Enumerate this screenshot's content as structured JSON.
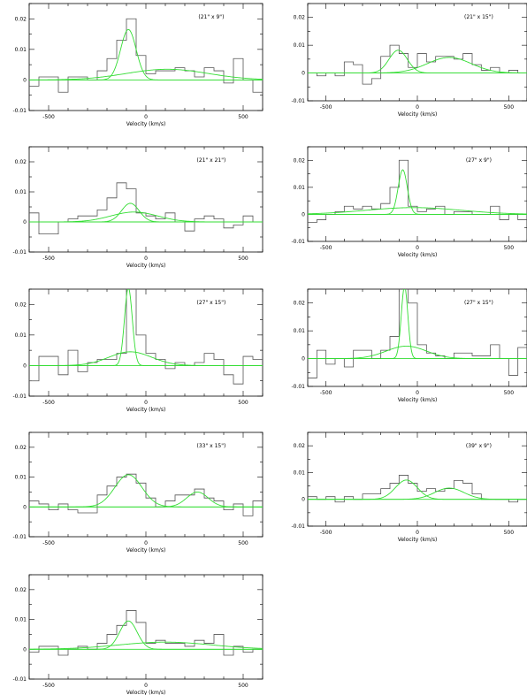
{
  "chart_data": [
    {
      "type": "line",
      "label": "(21\" x 9\")",
      "xlabel": "Velocity (km/s)",
      "xlim": [
        -600,
        600
      ],
      "ylim": [
        -0.01,
        0.025
      ],
      "xticks": [
        -500,
        0,
        500
      ],
      "yticks": [
        -0.01,
        0,
        0.01,
        0.02
      ],
      "ytick_labels": [
        "-0.01",
        "0",
        "0.01",
        "0.02"
      ],
      "spectrum": {
        "bin_edges": [
          -600,
          -550,
          -500,
          -450,
          -400,
          -350,
          -300,
          -250,
          -200,
          -150,
          -100,
          -50,
          0,
          50,
          100,
          150,
          200,
          250,
          300,
          350,
          400,
          450,
          500,
          550,
          600
        ],
        "values": [
          -0.002,
          0.001,
          0.001,
          -0.004,
          0.001,
          0.001,
          0.0,
          0.003,
          0.007,
          0.013,
          0.02,
          0.008,
          0.002,
          0.003,
          0.003,
          0.004,
          0.003,
          0.001,
          0.004,
          0.003,
          -0.001,
          0.007,
          0.0,
          -0.004
        ]
      },
      "components": [
        {
          "amplitude": 0.0165,
          "center": -90,
          "sigma": 40
        },
        {
          "amplitude": 0.0035,
          "center": 110,
          "sigma": 210
        }
      ]
    },
    {
      "type": "line",
      "label": "(21\" x 15\")",
      "xlabel": "Velocity (km/s)",
      "xlim": [
        -600,
        600
      ],
      "ylim": [
        -0.01,
        0.025
      ],
      "xticks": [
        -500,
        0,
        500
      ],
      "yticks": [
        -0.01,
        0,
        0.01,
        0.02
      ],
      "ytick_labels": [
        "-0.01",
        "0",
        "0.01",
        "0.02"
      ],
      "spectrum": {
        "bin_edges": [
          -600,
          -550,
          -500,
          -450,
          -400,
          -350,
          -300,
          -250,
          -200,
          -150,
          -100,
          -50,
          0,
          50,
          100,
          150,
          200,
          250,
          300,
          350,
          400,
          450,
          500,
          550,
          600
        ],
        "values": [
          0.0,
          -0.001,
          0.0,
          -0.001,
          0.004,
          0.003,
          -0.004,
          -0.002,
          0.006,
          0.01,
          0.007,
          0.002,
          0.007,
          0.004,
          0.006,
          0.006,
          0.005,
          0.007,
          0.003,
          0.001,
          0.002,
          0.0,
          0.001,
          0.0
        ]
      },
      "components": [
        {
          "amplitude": 0.0082,
          "center": -105,
          "sigma": 50
        },
        {
          "amplitude": 0.0056,
          "center": 175,
          "sigma": 120
        }
      ]
    },
    {
      "type": "line",
      "label": "(21\" x 21\")",
      "xlabel": "Velocity (km/s)",
      "xlim": [
        -600,
        600
      ],
      "ylim": [
        -0.01,
        0.025
      ],
      "xticks": [
        -500,
        0,
        500
      ],
      "yticks": [
        -0.01,
        0,
        0.01,
        0.02
      ],
      "ytick_labels": [
        "-0.01",
        "0",
        "0.01",
        "0.02"
      ],
      "spectrum": {
        "bin_edges": [
          -600,
          -550,
          -500,
          -450,
          -400,
          -350,
          -300,
          -250,
          -200,
          -150,
          -100,
          -50,
          0,
          50,
          100,
          150,
          200,
          250,
          300,
          350,
          400,
          450,
          500,
          550,
          600
        ],
        "values": [
          0.003,
          -0.004,
          -0.004,
          0.0,
          0.001,
          0.002,
          0.002,
          0.004,
          0.008,
          0.013,
          0.011,
          0.003,
          0.002,
          0.001,
          0.003,
          0.0,
          -0.003,
          0.001,
          0.002,
          0.001,
          -0.002,
          -0.001,
          0.002,
          0.0
        ]
      },
      "components": [
        {
          "amplitude": 0.0062,
          "center": -80,
          "sigma": 45
        },
        {
          "amplitude": 0.0033,
          "center": -60,
          "sigma": 120
        }
      ]
    },
    {
      "type": "line",
      "label": "(27\" x 9\")",
      "xlabel": "Velocity (km/s)",
      "xlim": [
        -600,
        600
      ],
      "ylim": [
        -0.01,
        0.025
      ],
      "xticks": [
        -500,
        0,
        500
      ],
      "yticks": [
        -0.01,
        0,
        0.01,
        0.02
      ],
      "ytick_labels": [
        "-0.01",
        "0",
        "0.01",
        "0.02"
      ],
      "spectrum": {
        "bin_edges": [
          -600,
          -550,
          -500,
          -450,
          -400,
          -350,
          -300,
          -250,
          -200,
          -150,
          -100,
          -50,
          0,
          50,
          100,
          150,
          200,
          250,
          300,
          350,
          400,
          450,
          500,
          550,
          600
        ],
        "values": [
          -0.003,
          -0.002,
          0.0,
          0.001,
          0.003,
          0.002,
          0.003,
          0.002,
          0.004,
          0.01,
          0.02,
          0.003,
          0.001,
          0.002,
          0.003,
          0.0,
          0.001,
          0.001,
          0.0,
          0.0,
          0.003,
          -0.002,
          0.0,
          -0.002
        ]
      },
      "components": [
        {
          "amplitude": 0.0165,
          "center": -80,
          "sigma": 25
        },
        {
          "amplitude": 0.0025,
          "center": -20,
          "sigma": 260
        }
      ]
    },
    {
      "type": "line",
      "label": "(27\" x 15\")",
      "xlabel": "Velocity (km/s)",
      "xlim": [
        -600,
        600
      ],
      "ylim": [
        -0.01,
        0.025
      ],
      "xticks": [
        -500,
        0,
        500
      ],
      "yticks": [
        -0.01,
        0,
        0.01,
        0.02
      ],
      "ytick_labels": [
        "-0.01",
        "0",
        "0.01",
        "0.02"
      ],
      "spectrum": {
        "bin_edges": [
          -600,
          -550,
          -500,
          -450,
          -400,
          -350,
          -300,
          -250,
          -200,
          -150,
          -100,
          -50,
          0,
          50,
          100,
          150,
          200,
          250,
          300,
          350,
          400,
          450,
          500,
          550,
          600
        ],
        "values": [
          -0.005,
          0.003,
          0.003,
          -0.003,
          0.005,
          -0.002,
          0.001,
          0.002,
          0.002,
          0.004,
          0.026,
          0.01,
          0.004,
          0.002,
          -0.001,
          0.001,
          0.0,
          0.001,
          0.004,
          0.002,
          -0.003,
          -0.006,
          0.003,
          0.002
        ]
      },
      "components": [
        {
          "amplitude": 0.0255,
          "center": -90,
          "sigma": 20
        },
        {
          "amplitude": 0.0045,
          "center": -80,
          "sigma": 110
        }
      ]
    },
    {
      "type": "line",
      "label": "(27\" x 15\")",
      "xlabel": "Velocity (km/s)",
      "xlim": [
        -600,
        600
      ],
      "ylim": [
        -0.01,
        0.025
      ],
      "xticks": [
        -500,
        0,
        500
      ],
      "yticks": [
        -0.01,
        0,
        0.01,
        0.02
      ],
      "ytick_labels": [
        "-0.01",
        "0",
        "0.01",
        "0.02"
      ],
      "spectrum": {
        "bin_edges": [
          -600,
          -550,
          -500,
          -450,
          -400,
          -350,
          -300,
          -250,
          -200,
          -150,
          -100,
          -50,
          0,
          50,
          100,
          150,
          200,
          250,
          300,
          350,
          400,
          450,
          500,
          550,
          600
        ],
        "values": [
          -0.007,
          0.003,
          -0.002,
          0.0,
          -0.003,
          0.003,
          0.003,
          0.0,
          0.003,
          0.008,
          0.028,
          0.02,
          0.005,
          0.002,
          0.001,
          0.0,
          0.002,
          0.002,
          0.001,
          0.001,
          0.005,
          0.0,
          -0.006,
          0.004
        ]
      },
      "components": [
        {
          "amplitude": 0.026,
          "center": -70,
          "sigma": 18
        },
        {
          "amplitude": 0.0045,
          "center": -60,
          "sigma": 110
        }
      ]
    },
    {
      "type": "line",
      "label": "(33\" x 15\")",
      "xlabel": "Velocity (km/s)",
      "xlim": [
        -600,
        600
      ],
      "ylim": [
        -0.01,
        0.025
      ],
      "xticks": [
        -500,
        0,
        500
      ],
      "yticks": [
        -0.01,
        0,
        0.01,
        0.02
      ],
      "ytick_labels": [
        "-0.01",
        "0",
        "0.01",
        "0.02"
      ],
      "spectrum": {
        "bin_edges": [
          -600,
          -550,
          -500,
          -450,
          -400,
          -350,
          -300,
          -250,
          -200,
          -150,
          -100,
          -50,
          0,
          50,
          100,
          150,
          200,
          250,
          300,
          350,
          400,
          450,
          500,
          550,
          600
        ],
        "values": [
          0.002,
          0.001,
          -0.001,
          0.001,
          -0.001,
          -0.002,
          -0.002,
          0.004,
          0.007,
          0.01,
          0.011,
          0.008,
          0.003,
          0.0,
          0.002,
          0.004,
          0.004,
          0.006,
          0.003,
          0.002,
          -0.001,
          0.001,
          -0.003,
          0.002
        ]
      },
      "components": [
        {
          "amplitude": 0.0108,
          "center": -90,
          "sigma": 70
        },
        {
          "amplitude": 0.005,
          "center": 265,
          "sigma": 55
        }
      ]
    },
    {
      "type": "line",
      "label": "(39\" x 9\")",
      "xlabel": "Velocity (km/s)",
      "xlim": [
        -600,
        600
      ],
      "ylim": [
        -0.01,
        0.025
      ],
      "xticks": [
        -500,
        0,
        500
      ],
      "yticks": [
        -0.01,
        0,
        0.01,
        0.02
      ],
      "ytick_labels": [
        "-0.01",
        "0",
        "0.01",
        "0.02"
      ],
      "spectrum": {
        "bin_edges": [
          -600,
          -550,
          -500,
          -450,
          -400,
          -350,
          -300,
          -250,
          -200,
          -150,
          -100,
          -50,
          0,
          50,
          100,
          150,
          200,
          250,
          300,
          350,
          400,
          450,
          500,
          550,
          600
        ],
        "values": [
          0.001,
          0.0,
          0.001,
          -0.001,
          0.001,
          0.0,
          0.002,
          0.002,
          0.004,
          0.006,
          0.009,
          0.006,
          0.003,
          0.004,
          0.003,
          0.004,
          0.007,
          0.006,
          0.002,
          0.0,
          0.0,
          0.0,
          -0.001,
          0.0
        ]
      },
      "components": [
        {
          "amplitude": 0.0072,
          "center": -60,
          "sigma": 60
        },
        {
          "amplitude": 0.0042,
          "center": 175,
          "sigma": 80
        }
      ]
    },
    {
      "type": "line",
      "label": "",
      "xlabel": "Velocity (km/s)",
      "xlim": [
        -600,
        600
      ],
      "ylim": [
        -0.01,
        0.025
      ],
      "xticks": [
        -500,
        0,
        500
      ],
      "yticks": [
        -0.01,
        0,
        0.01,
        0.02
      ],
      "ytick_labels": [
        "-0.01",
        "0",
        "0.01",
        "0.02"
      ],
      "spectrum": {
        "bin_edges": [
          -600,
          -550,
          -500,
          -450,
          -400,
          -350,
          -300,
          -250,
          -200,
          -150,
          -100,
          -50,
          0,
          50,
          100,
          150,
          200,
          250,
          300,
          350,
          400,
          450,
          500,
          550,
          600
        ],
        "values": [
          -0.001,
          0.001,
          0.001,
          -0.002,
          0.0,
          0.001,
          0.0,
          0.002,
          0.005,
          0.008,
          0.013,
          0.009,
          0.002,
          0.003,
          0.002,
          0.002,
          0.001,
          0.003,
          0.002,
          0.005,
          -0.002,
          0.001,
          -0.001,
          0.0
        ]
      },
      "components": [
        {
          "amplitude": 0.0095,
          "center": -90,
          "sigma": 45
        },
        {
          "amplitude": 0.0024,
          "center": 100,
          "sigma": 240
        }
      ]
    }
  ],
  "colors": {
    "spectrum": "#555555",
    "fit": "#33dd33",
    "axis": "#000000"
  }
}
